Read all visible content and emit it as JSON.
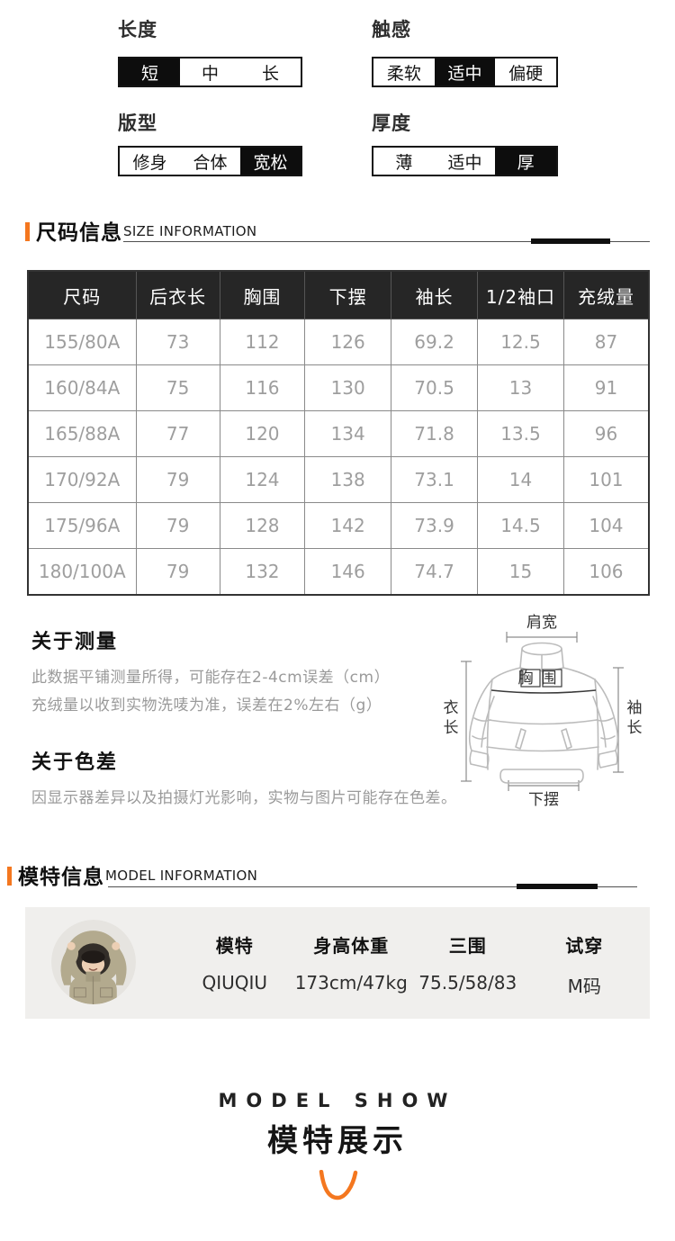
{
  "accent_color": "#f4771f",
  "attributes": {
    "groups": [
      {
        "label": "长度",
        "items": [
          {
            "text": "短",
            "selected": true
          },
          {
            "text": "中",
            "selected": false
          },
          {
            "text": "长",
            "selected": false
          }
        ]
      },
      {
        "label": "触感",
        "items": [
          {
            "text": "柔软",
            "selected": false
          },
          {
            "text": "适中",
            "selected": true
          },
          {
            "text": "偏硬",
            "selected": false
          }
        ]
      },
      {
        "label": "版型",
        "items": [
          {
            "text": "修身",
            "selected": false
          },
          {
            "text": "合体",
            "selected": false
          },
          {
            "text": "宽松",
            "selected": true
          }
        ]
      },
      {
        "label": "厚度",
        "items": [
          {
            "text": "薄",
            "selected": false
          },
          {
            "text": "适中",
            "selected": false
          },
          {
            "text": "厚",
            "selected": true
          }
        ]
      }
    ]
  },
  "size_section": {
    "title": "尺码信息",
    "subtitle": "SIZE INFORMATION",
    "table": {
      "headers": [
        "尺码",
        "后衣长",
        "胸围",
        "下摆",
        "袖长",
        "1/2袖口",
        "充绒量"
      ],
      "rows": [
        [
          "155/80A",
          "73",
          "112",
          "126",
          "69.2",
          "12.5",
          "87"
        ],
        [
          "160/84A",
          "75",
          "116",
          "130",
          "70.5",
          "13",
          "91"
        ],
        [
          "165/88A",
          "77",
          "120",
          "134",
          "71.8",
          "13.5",
          "96"
        ],
        [
          "170/92A",
          "79",
          "124",
          "138",
          "73.1",
          "14",
          "101"
        ],
        [
          "175/96A",
          "79",
          "128",
          "142",
          "73.9",
          "14.5",
          "104"
        ],
        [
          "180/100A",
          "79",
          "132",
          "146",
          "74.7",
          "15",
          "106"
        ]
      ]
    }
  },
  "measurement_note": {
    "title": "关于测量",
    "line1": "此数据平铺测量所得，可能存在2-4cm误差（cm）",
    "line2": "充绒量以收到实物洗唛为准，误差在2%左右（g）"
  },
  "color_note": {
    "title": "关于色差",
    "text": "因显示器差异以及拍摄灯光影响，实物与图片可能存在色差。"
  },
  "diagram": {
    "shoulder": "肩宽",
    "chest": "胸围",
    "length": "衣长",
    "sleeve": "袖长",
    "hem": "下摆"
  },
  "model_section": {
    "title": "模特信息",
    "subtitle": "MODEL INFORMATION",
    "columns": [
      {
        "label": "模特",
        "value": "QIUQIU"
      },
      {
        "label": "身高体重",
        "value": "173cm/47kg"
      },
      {
        "label": "三围",
        "value": "75.5/58/83"
      },
      {
        "label": "试穿",
        "value": "M码"
      }
    ]
  },
  "model_show": {
    "en": "MODEL SHOW",
    "cn": "模特展示"
  }
}
